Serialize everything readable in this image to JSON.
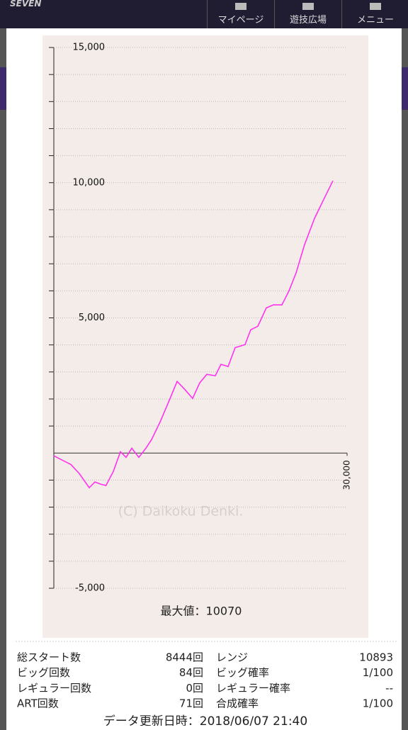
{
  "header": {
    "logo": "SEVEN",
    "nav": [
      "マイページ",
      "遊技広場",
      "メニュー"
    ]
  },
  "chart_data": {
    "type": "line",
    "color": "#ff33ee",
    "x": [
      0,
      1014,
      1739,
      2609,
      3623,
      4203,
      4783,
      5333,
      6087,
      6812,
      7391,
      7971,
      8696,
      9420,
      10000,
      10870,
      11740,
      12610,
      13330,
      14200,
      14930,
      15650,
      16520,
      17100,
      17830,
      18550,
      19560,
      20140,
      20870,
      21740,
      22460,
      23330,
      24060,
      24780,
      25650,
      26670,
      27540,
      28550
    ],
    "values": [
      -100,
      -290,
      -420,
      -760,
      -1280,
      -1070,
      -1150,
      -1200,
      -680,
      50,
      -160,
      180,
      -160,
      180,
      500,
      1150,
      1890,
      2650,
      2380,
      2020,
      2600,
      2910,
      2860,
      3280,
      3200,
      3900,
      4010,
      4560,
      4690,
      5370,
      5480,
      5480,
      6000,
      6660,
      7710,
      8680,
      9330,
      10070
    ],
    "xlim": [
      0,
      30000
    ],
    "xticks": [
      {
        "value": 30000,
        "label": "30,000"
      }
    ],
    "ylim": [
      -5000,
      15000
    ],
    "yticks": [
      {
        "value": 15000,
        "label": "15,000"
      },
      {
        "value": 10000,
        "label": "10,000"
      },
      {
        "value": 5000,
        "label": "5,000"
      },
      {
        "value": -5000,
        "label": "-5,000"
      }
    ],
    "minor_yticks": [
      -4000,
      -3000,
      -2000,
      -1000,
      1000,
      2000,
      3000,
      4000,
      6000,
      7000,
      8000,
      9000,
      11000,
      12000,
      13000,
      14000
    ],
    "grid": true,
    "watermark": "(C) Daikoku Denki.",
    "max_label": "最大値：10070"
  },
  "stats": {
    "rows": [
      [
        "総スタート数",
        "8444回",
        "レンジ",
        "10893"
      ],
      [
        "ビッグ回数",
        "84回",
        "ビッグ確率",
        "1/100"
      ],
      [
        "レギュラー回数",
        "0回",
        "レギュラー確率",
        "--"
      ],
      [
        "ART回数",
        "71回",
        "合成確率",
        "1/100"
      ]
    ],
    "updated": "データ更新日時：2018/06/07 21:40"
  }
}
